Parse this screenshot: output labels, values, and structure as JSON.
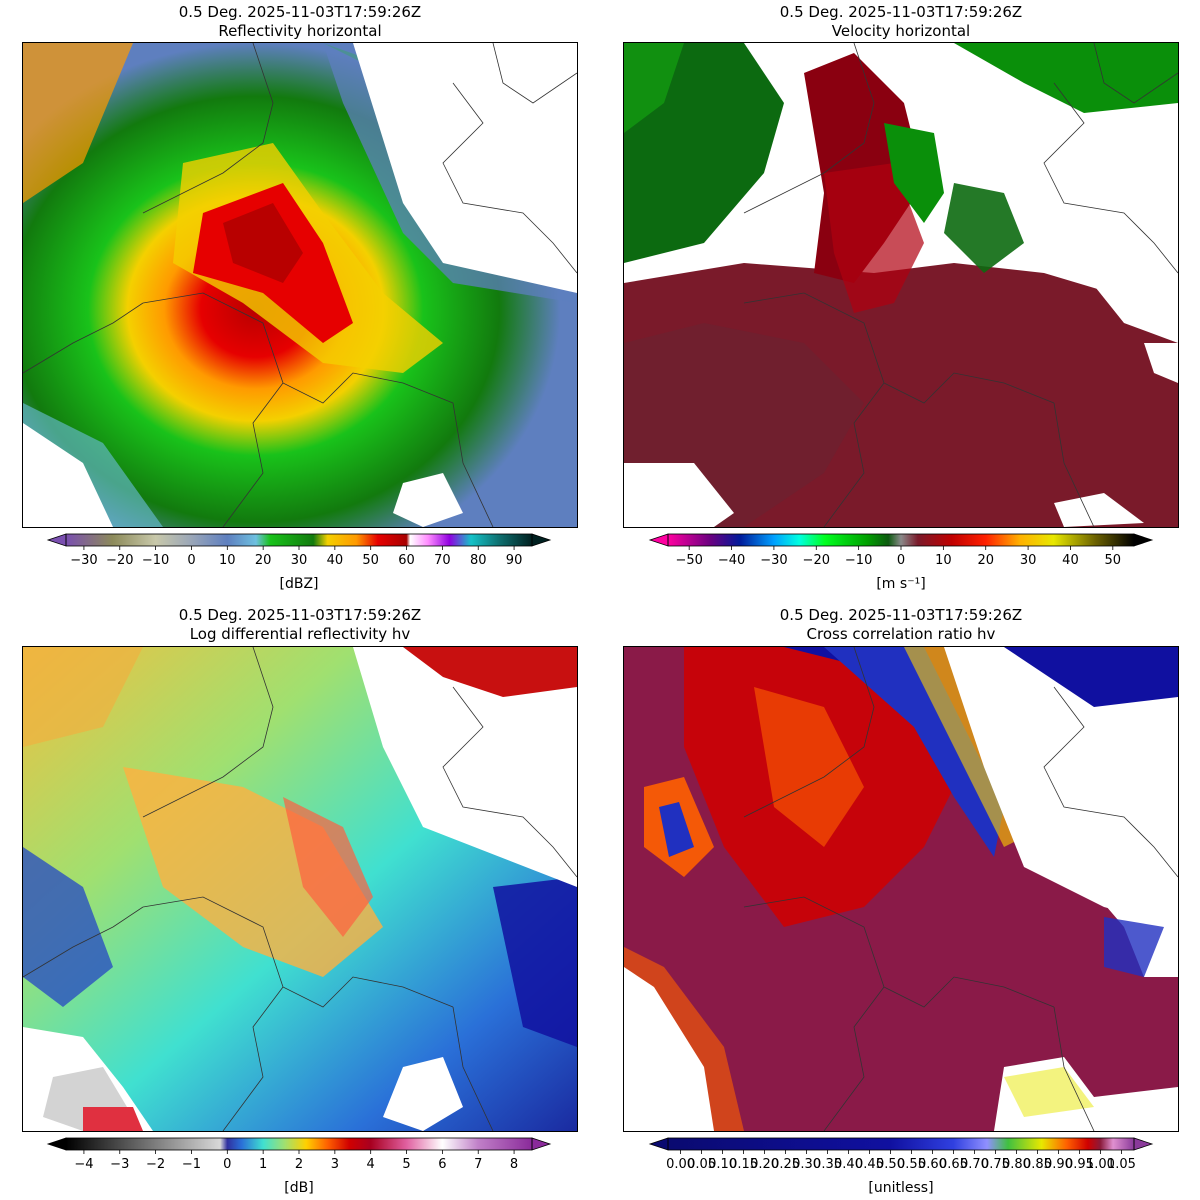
{
  "panels": [
    {
      "id": "reflectivity",
      "title_line1": "0.5 Deg. 2025-11-03T17:59:26Z",
      "title_line2": "Reflectivity horizontal",
      "colorbar": {
        "label": "[dBZ]",
        "min": -35,
        "max": 95,
        "ticks": [
          "−30",
          "−20",
          "−10",
          "0",
          "10",
          "20",
          "30",
          "40",
          "50",
          "60",
          "70",
          "80",
          "90"
        ],
        "tick_values": [
          -30,
          -20,
          -10,
          0,
          10,
          20,
          30,
          40,
          50,
          60,
          70,
          80,
          90
        ],
        "stops": [
          {
            "v": -35,
            "c": "#7a4fb0"
          },
          {
            "v": -22,
            "c": "#8c8a5a"
          },
          {
            "v": -10,
            "c": "#c8c8aa"
          },
          {
            "v": 0,
            "c": "#9aa6b8"
          },
          {
            "v": 10,
            "c": "#5e7fbf"
          },
          {
            "v": 18,
            "c": "#6ec0e0"
          },
          {
            "v": 22,
            "c": "#19c21a"
          },
          {
            "v": 34,
            "c": "#127a0e"
          },
          {
            "v": 38,
            "c": "#f4d000"
          },
          {
            "v": 46,
            "c": "#ff9a00"
          },
          {
            "v": 52,
            "c": "#e60000"
          },
          {
            "v": 60,
            "c": "#a80000"
          },
          {
            "v": 61,
            "c": "#ffffff"
          },
          {
            "v": 66,
            "c": "#ff8cff"
          },
          {
            "v": 72,
            "c": "#9000e0"
          },
          {
            "v": 78,
            "c": "#15c2c8"
          },
          {
            "v": 86,
            "c": "#0e6e6e"
          },
          {
            "v": 95,
            "c": "#002020"
          }
        ]
      }
    },
    {
      "id": "velocity",
      "title_line1": "0.5 Deg. 2025-11-03T17:59:26Z",
      "title_line2": "Velocity horizontal",
      "colorbar": {
        "label": "[m s⁻¹]",
        "min": -55,
        "max": 55,
        "ticks": [
          "−50",
          "−40",
          "−30",
          "−20",
          "−10",
          "0",
          "10",
          "20",
          "30",
          "40",
          "50"
        ],
        "tick_values": [
          -50,
          -40,
          -30,
          -20,
          -10,
          0,
          10,
          20,
          30,
          40,
          50
        ],
        "stops": [
          {
            "v": -55,
            "c": "#ff00a0"
          },
          {
            "v": -45,
            "c": "#6a0080"
          },
          {
            "v": -38,
            "c": "#001a9a"
          },
          {
            "v": -30,
            "c": "#00a0ff"
          },
          {
            "v": -24,
            "c": "#00ffe0"
          },
          {
            "v": -18,
            "c": "#00ff20"
          },
          {
            "v": -8,
            "c": "#00a000"
          },
          {
            "v": -3,
            "c": "#0c5a10"
          },
          {
            "v": 0,
            "c": "#8a8a8a"
          },
          {
            "v": 4,
            "c": "#7a1a2a"
          },
          {
            "v": 12,
            "c": "#c00000"
          },
          {
            "v": 20,
            "c": "#ff2000"
          },
          {
            "v": 28,
            "c": "#ffb000"
          },
          {
            "v": 36,
            "c": "#e8e800"
          },
          {
            "v": 46,
            "c": "#6a6000"
          },
          {
            "v": 55,
            "c": "#000000"
          }
        ]
      }
    },
    {
      "id": "zdr",
      "title_line1": "0.5 Deg. 2025-11-03T17:59:26Z",
      "title_line2": "Log differential reflectivity hv",
      "colorbar": {
        "label": "[dB]",
        "min": -4.5,
        "max": 8.5,
        "ticks": [
          "−4",
          "−3",
          "−2",
          "−1",
          "0",
          "1",
          "2",
          "3",
          "4",
          "5",
          "6",
          "7",
          "8"
        ],
        "tick_values": [
          -4,
          -3,
          -2,
          -1,
          0,
          1,
          2,
          3,
          4,
          5,
          6,
          7,
          8
        ],
        "stops": [
          {
            "v": -4.5,
            "c": "#000000"
          },
          {
            "v": -0.2,
            "c": "#d8d8d8"
          },
          {
            "v": 0.0,
            "c": "#3030a0"
          },
          {
            "v": 0.4,
            "c": "#2a70d8"
          },
          {
            "v": 1.0,
            "c": "#40e0d0"
          },
          {
            "v": 1.6,
            "c": "#a0e070"
          },
          {
            "v": 2.2,
            "c": "#ffd000"
          },
          {
            "v": 2.8,
            "c": "#ff6000"
          },
          {
            "v": 3.4,
            "c": "#d00000"
          },
          {
            "v": 4.0,
            "c": "#a80020"
          },
          {
            "v": 5.0,
            "c": "#e060a0"
          },
          {
            "v": 6.0,
            "c": "#ffffff"
          },
          {
            "v": 7.0,
            "c": "#c080c8"
          },
          {
            "v": 8.5,
            "c": "#8a2a9a"
          }
        ]
      }
    },
    {
      "id": "rhohv",
      "title_line1": "0.5 Deg. 2025-11-03T17:59:26Z",
      "title_line2": "Cross correlation ratio hv",
      "colorbar": {
        "label": "[unitless]",
        "min": -0.03,
        "max": 1.08,
        "ticks": [
          "0.00",
          "0.05",
          "0.10",
          "0.15",
          "0.20",
          "0.25",
          "0.30",
          "0.35",
          "0.40",
          "0.45",
          "0.50",
          "0.55",
          "0.60",
          "0.65",
          "0.70",
          "0.75",
          "0.80",
          "0.85",
          "0.90",
          "0.95",
          "1.00",
          "1.05"
        ],
        "tick_values": [
          0.0,
          0.05,
          0.1,
          0.15,
          0.2,
          0.25,
          0.3,
          0.35,
          0.4,
          0.45,
          0.5,
          0.55,
          0.6,
          0.65,
          0.7,
          0.75,
          0.8,
          0.85,
          0.9,
          0.95,
          1.0,
          1.05
        ],
        "stops": [
          {
            "v": -0.03,
            "c": "#0a0a70"
          },
          {
            "v": 0.5,
            "c": "#1010a0"
          },
          {
            "v": 0.65,
            "c": "#3040e0"
          },
          {
            "v": 0.73,
            "c": "#9090ff"
          },
          {
            "v": 0.78,
            "c": "#40c040"
          },
          {
            "v": 0.86,
            "c": "#e8e800"
          },
          {
            "v": 0.92,
            "c": "#ff6000"
          },
          {
            "v": 0.97,
            "c": "#d00000"
          },
          {
            "v": 1.0,
            "c": "#8a1a3a"
          },
          {
            "v": 1.03,
            "c": "#e090d0"
          },
          {
            "v": 1.08,
            "c": "#8a3a9a"
          }
        ]
      }
    }
  ]
}
